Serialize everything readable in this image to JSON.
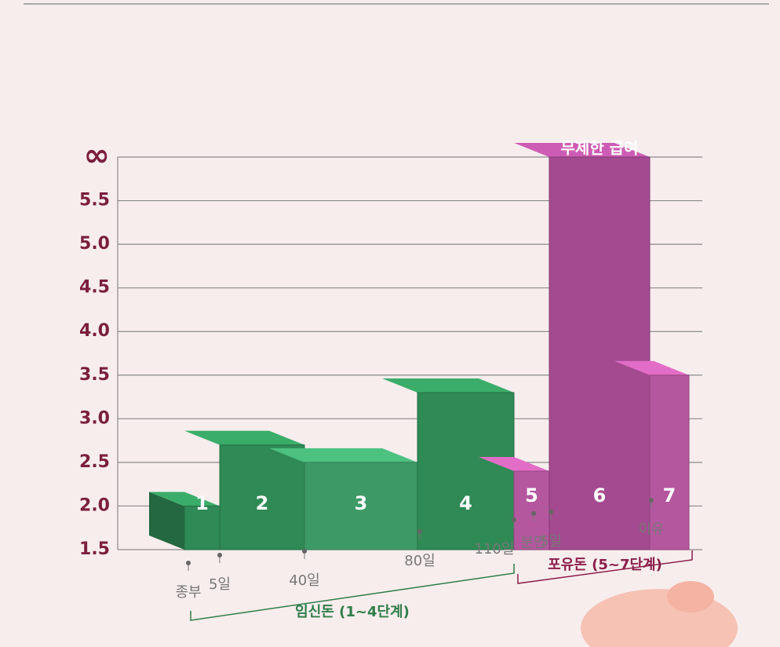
{
  "chart_data": {
    "type": "bar",
    "categories": [
      "1",
      "2",
      "3",
      "4",
      "5",
      "6",
      "7"
    ],
    "values": [
      2.0,
      2.7,
      2.5,
      3.3,
      2.4,
      6,
      3.5
    ],
    "colors": [
      "#2f8a55",
      "#2f8a55",
      "#3d9a66",
      "#2f8a55",
      "#b5579f",
      "#a44a90",
      "#b5579f"
    ],
    "ylim": [
      1.5,
      6
    ],
    "yticks": [
      1.5,
      {
        "value": 2,
        "label": "2.0"
      },
      2.5,
      {
        "value": 3,
        "label": "3.0"
      },
      3.5,
      {
        "value": 4,
        "label": "4.0"
      },
      4.5,
      {
        "value": 5,
        "label": "5.0"
      },
      5.5,
      {
        "value": 6,
        "label": "∞"
      }
    ],
    "grid": true,
    "x_labels": [
      "종부",
      "5일",
      "40일",
      "80일",
      "110일",
      "분만",
      "5일",
      "이유"
    ],
    "groups": [
      {
        "label": "임신돈 (1~4단계)",
        "color": "#2e7d4a"
      },
      {
        "label": "포유돈 (5~7단계)",
        "color": "#8a1f4a"
      }
    ],
    "annotation": "무제한 급여"
  }
}
